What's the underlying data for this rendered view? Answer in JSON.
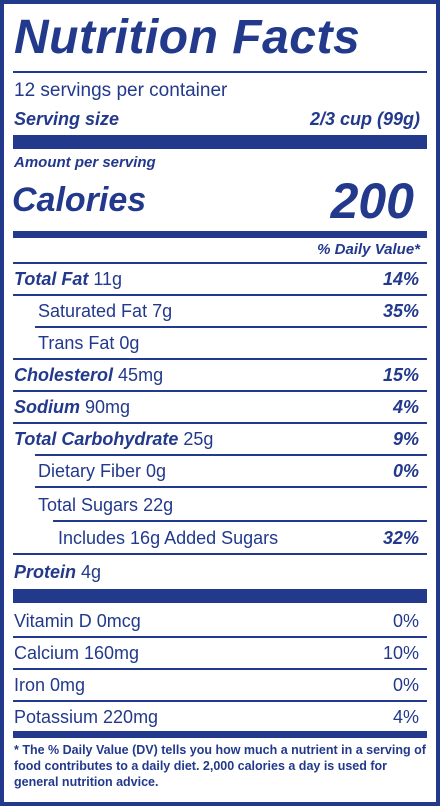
{
  "title": "Nutrition Facts",
  "servings_per_container": "12 servings per container",
  "serving_size_label": "Serving size",
  "serving_size_value": "2/3 cup (99g)",
  "amount_per_serving": "Amount per serving",
  "calories_label": "Calories",
  "calories_value": "200",
  "daily_value_header": "% Daily Value*",
  "nutrients": [
    {
      "name": "Total Fat",
      "amount": "11g",
      "dv": "14%"
    },
    {
      "name": "Saturated Fat",
      "amount": "7g",
      "dv": "35%"
    },
    {
      "name": "Trans Fat",
      "amount": "0g",
      "dv": ""
    },
    {
      "name": "Cholesterol",
      "amount": "45mg",
      "dv": "15%"
    },
    {
      "name": "Sodium",
      "amount": "90mg",
      "dv": "4%"
    },
    {
      "name": "Total Carbohydrate",
      "amount": "25g",
      "dv": "9%"
    },
    {
      "name": "Dietary Fiber",
      "amount": "0g",
      "dv": "0%"
    },
    {
      "name": "Total Sugars",
      "amount": "22g",
      "dv": ""
    },
    {
      "name": "Includes 16g Added Sugars",
      "amount": "",
      "dv": "32%"
    },
    {
      "name": "Protein",
      "amount": "4g",
      "dv": ""
    }
  ],
  "vitamins": [
    {
      "name": "Vitamin D 0mcg",
      "dv": "0%"
    },
    {
      "name": "Calcium 160mg",
      "dv": "10%"
    },
    {
      "name": "Iron 0mg",
      "dv": "0%"
    },
    {
      "name": "Potassium 220mg",
      "dv": "4%"
    }
  ],
  "footnote": "* The % Daily Value (DV) tells you how much a nutrient in a serving of food contributes to a daily diet. 2,000 calories a day is used for general nutrition advice.",
  "colors": {
    "ink": "#22398c",
    "background": "#ffffff"
  }
}
